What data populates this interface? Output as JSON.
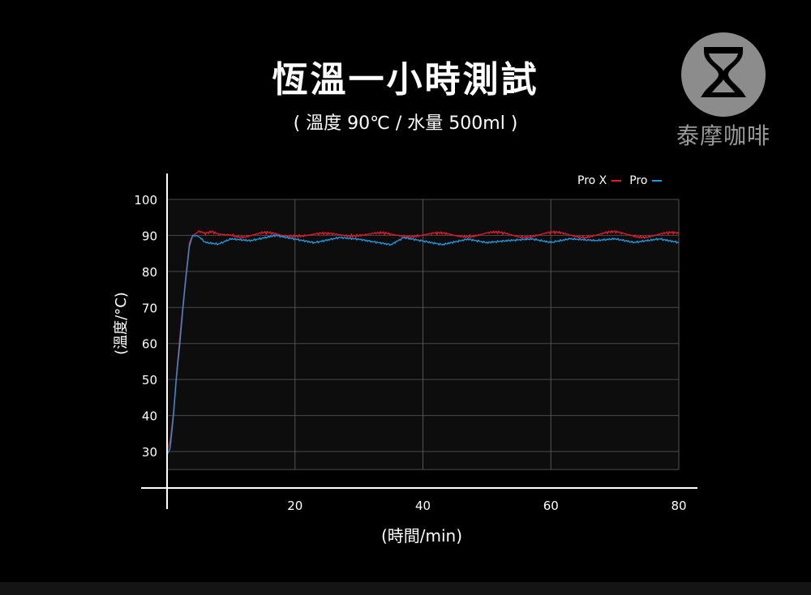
{
  "title": "恆溫一小時測試",
  "subtitle": "( 溫度 90℃ / 水量 500ml )",
  "brand": {
    "name": "泰摩咖啡",
    "logo_icon": "hourglass-logo-icon"
  },
  "chart_data": {
    "type": "line",
    "xlabel": "(時間/min)",
    "ylabel": "(溫度/°C)",
    "xlim": [
      0,
      80
    ],
    "ylim": [
      25,
      100
    ],
    "xticks": [
      20,
      40,
      60,
      80
    ],
    "yticks": [
      30,
      40,
      50,
      60,
      70,
      80,
      90,
      100
    ],
    "grid": true,
    "legend_position": "top-right",
    "series": [
      {
        "name": "Pro X",
        "color": "#e8192c",
        "x": [
          0,
          0.5,
          1,
          1.5,
          2,
          2.5,
          3,
          3.5,
          4,
          4.5,
          5,
          6,
          7,
          8,
          10,
          12,
          15,
          18,
          20,
          25,
          30,
          35,
          40,
          45,
          50,
          55,
          60,
          65,
          70,
          75,
          80
        ],
        "y": [
          30,
          33,
          41,
          52,
          62,
          71,
          80,
          88,
          90,
          90.5,
          91,
          90,
          90.5,
          90,
          90.5,
          90,
          90.3,
          90,
          90.4,
          90,
          90.5,
          90,
          90.3,
          90,
          90.5,
          90,
          90.4,
          90,
          90.5,
          90,
          90.3
        ]
      },
      {
        "name": "Pro",
        "color": "#1e9be3",
        "x": [
          0,
          0.5,
          1,
          1.5,
          2,
          2.5,
          3,
          3.5,
          4,
          5,
          6,
          8,
          10,
          13,
          17,
          20,
          23,
          27,
          30,
          35,
          37,
          40,
          43,
          47,
          50,
          53,
          57,
          60,
          63,
          67,
          70,
          73,
          77,
          80
        ],
        "y": [
          29,
          31,
          40,
          51,
          60,
          70,
          79,
          87,
          90,
          89.5,
          88,
          87.5,
          89,
          88.5,
          90,
          89,
          88,
          89.5,
          89,
          87.5,
          89.5,
          88.5,
          87.5,
          89,
          88,
          88.5,
          89,
          88,
          89,
          88.5,
          89,
          88,
          89,
          88
        ]
      }
    ]
  }
}
